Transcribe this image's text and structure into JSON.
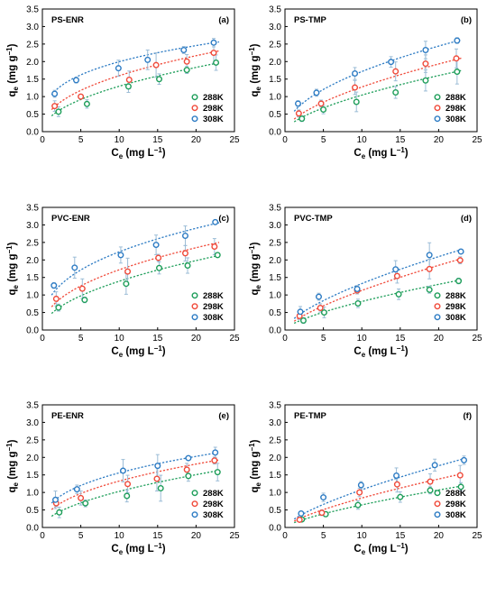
{
  "colors": {
    "288K": "#1e9e5a",
    "298K": "#f04a3a",
    "308K": "#2e7cc4",
    "error_bar": "#9bbcd6"
  },
  "axes": {
    "xlabel_main": "C",
    "xlabel_sub": "e",
    "xlabel_unit": " (mg L",
    "xlabel_exp": "−1",
    "xlabel_close": ")",
    "ylabel_main": "q",
    "ylabel_sub": "e",
    "ylabel_unit": " (mg g",
    "ylabel_exp": "−1",
    "ylabel_close": ")"
  },
  "legend_labels": [
    "288K",
    "298K",
    "308K"
  ],
  "chart_data": [
    {
      "type": "scatter",
      "title": "PS-ENR",
      "label": "(a)",
      "xlim": [
        0,
        25
      ],
      "ylim": [
        0,
        3.5
      ],
      "xticks": [
        "0",
        "5",
        "10",
        "15",
        "20",
        "25"
      ],
      "yticks": [
        "0.0",
        "0.5",
        "1.0",
        "1.5",
        "2.0",
        "2.5",
        "3.0",
        "3.5"
      ],
      "legend_position": "bottom-right",
      "series": [
        {
          "name": "288K",
          "x": [
            2.1,
            5.8,
            11.2,
            15.2,
            18.8,
            22.6
          ],
          "y": [
            0.57,
            0.79,
            1.29,
            1.5,
            1.76,
            1.97
          ],
          "err": [
            0.14,
            0.12,
            0.17,
            0.15,
            0.1,
            0.22
          ],
          "fit": {
            "k": 0.41,
            "n": 0.5
          }
        },
        {
          "name": "298K",
          "x": [
            1.6,
            5.0,
            11.3,
            14.8,
            18.8,
            22.3
          ],
          "y": [
            0.73,
            1.0,
            1.48,
            1.9,
            2.0,
            2.25
          ],
          "err": [
            0.15,
            0.06,
            0.25,
            0.35,
            0.2,
            0.3
          ],
          "fit": {
            "k": 0.58,
            "n": 0.44
          }
        },
        {
          "name": "308K",
          "x": [
            1.6,
            4.4,
            9.9,
            13.7,
            18.4,
            22.3
          ],
          "y": [
            1.08,
            1.47,
            1.81,
            2.05,
            2.33,
            2.54
          ],
          "err": [
            0.1,
            0.08,
            0.23,
            0.28,
            0.1,
            0.12
          ],
          "fit": {
            "k": 1.0,
            "n": 0.3
          }
        }
      ]
    },
    {
      "type": "scatter",
      "title": "PS-TMP",
      "label": "(b)",
      "xlim": [
        0,
        25
      ],
      "ylim": [
        0,
        3.5
      ],
      "xticks": [
        "0",
        "5",
        "10",
        "15",
        "20",
        "25"
      ],
      "yticks": [
        "0.0",
        "0.5",
        "1.0",
        "1.5",
        "2.0",
        "2.5",
        "3.0",
        "3.5"
      ],
      "legend_position": "bottom-right",
      "series": [
        {
          "name": "288K",
          "x": [
            2.2,
            5.0,
            9.3,
            14.4,
            18.3,
            22.4
          ],
          "y": [
            0.37,
            0.63,
            0.85,
            1.12,
            1.46,
            1.71
          ],
          "err": [
            0.08,
            0.12,
            0.28,
            0.17,
            0.3,
            0.35
          ],
          "fit": {
            "k": 0.25,
            "n": 0.62
          }
        },
        {
          "name": "298K",
          "x": [
            1.8,
            4.7,
            9.1,
            14.4,
            18.3,
            22.3
          ],
          "y": [
            0.52,
            0.8,
            1.26,
            1.72,
            1.94,
            2.09
          ],
          "err": [
            0.1,
            0.1,
            0.2,
            0.27,
            0.25,
            0.27
          ],
          "fit": {
            "k": 0.32,
            "n": 0.6
          }
        },
        {
          "name": "308K",
          "x": [
            1.7,
            4.1,
            9.1,
            13.8,
            18.3,
            22.4
          ],
          "y": [
            0.8,
            1.11,
            1.66,
            1.99,
            2.33,
            2.6
          ],
          "err": [
            0.08,
            0.1,
            0.17,
            0.15,
            0.25,
            0.08
          ],
          "fit": {
            "k": 0.53,
            "n": 0.51
          }
        }
      ]
    },
    {
      "type": "scatter",
      "title": "PVC-ENR",
      "label": "(c)",
      "xlim": [
        0,
        25
      ],
      "ylim": [
        0,
        3.5
      ],
      "xticks": [
        "0",
        "5",
        "10",
        "15",
        "20",
        "25"
      ],
      "yticks": [
        "0.0",
        "0.5",
        "1.0",
        "1.5",
        "2.0",
        "2.5",
        "3.0",
        "3.5"
      ],
      "legend_position": "bottom-right",
      "series": [
        {
          "name": "288K",
          "x": [
            2.1,
            5.5,
            10.9,
            15.2,
            18.9,
            22.8
          ],
          "y": [
            0.64,
            0.86,
            1.32,
            1.77,
            1.84,
            2.14
          ],
          "err": [
            0.1,
            0.08,
            0.3,
            0.17,
            0.22,
            0.04
          ],
          "fit": {
            "k": 0.43,
            "n": 0.51
          }
        },
        {
          "name": "298K",
          "x": [
            1.8,
            5.2,
            11.1,
            15.1,
            18.6,
            22.4
          ],
          "y": [
            0.89,
            1.18,
            1.67,
            2.06,
            2.19,
            2.38
          ],
          "err": [
            0.2,
            0.28,
            0.38,
            0.1,
            0.22,
            0.23
          ],
          "fit": {
            "k": 0.61,
            "n": 0.45
          }
        },
        {
          "name": "308K",
          "x": [
            1.5,
            4.2,
            10.2,
            14.8,
            18.6,
            22.5
          ],
          "y": [
            1.27,
            1.78,
            2.14,
            2.43,
            2.69,
            3.08
          ],
          "err": [
            0.08,
            0.3,
            0.23,
            0.28,
            0.28,
            0.05
          ],
          "fit": {
            "k": 0.93,
            "n": 0.38
          }
        }
      ]
    },
    {
      "type": "scatter",
      "title": "PVC-TMP",
      "label": "(d)",
      "xlim": [
        0,
        25
      ],
      "ylim": [
        0,
        3.5
      ],
      "xticks": [
        "0",
        "5",
        "10",
        "15",
        "20",
        "25"
      ],
      "yticks": [
        "0.0",
        "0.5",
        "1.0",
        "1.5",
        "2.0",
        "2.5",
        "3.0",
        "3.5"
      ],
      "legend_position": "bottom-right",
      "series": [
        {
          "name": "288K",
          "x": [
            2.4,
            5.1,
            9.5,
            14.8,
            18.8,
            22.6
          ],
          "y": [
            0.27,
            0.5,
            0.76,
            1.02,
            1.15,
            1.4
          ],
          "err": [
            0.08,
            0.15,
            0.12,
            0.15,
            0.1,
            0.08
          ],
          "fit": {
            "k": 0.17,
            "n": 0.68
          }
        },
        {
          "name": "298K",
          "x": [
            1.9,
            4.6,
            9.4,
            14.6,
            18.8,
            22.8
          ],
          "y": [
            0.4,
            0.63,
            1.13,
            1.54,
            1.74,
            1.99
          ],
          "err": [
            0.1,
            0.12,
            0.1,
            0.2,
            0.28,
            0.1
          ],
          "fit": {
            "k": 0.22,
            "n": 0.71
          }
        },
        {
          "name": "308K",
          "x": [
            2.0,
            4.4,
            9.4,
            14.4,
            18.8,
            22.9
          ],
          "y": [
            0.52,
            0.95,
            1.17,
            1.73,
            2.14,
            2.24
          ],
          "err": [
            0.15,
            0.1,
            0.1,
            0.25,
            0.35,
            0.03
          ],
          "fit": {
            "k": 0.29,
            "n": 0.66
          }
        }
      ]
    },
    {
      "type": "scatter",
      "title": "PE-ENR",
      "label": "(e)",
      "xlim": [
        0,
        25
      ],
      "ylim": [
        0,
        3.5
      ],
      "xticks": [
        "0",
        "5",
        "10",
        "15",
        "20",
        "25"
      ],
      "yticks": [
        "0.0",
        "0.5",
        "1.0",
        "1.5",
        "2.0",
        "2.5",
        "3.0",
        "3.5"
      ],
      "legend_position": "bottom-right",
      "series": [
        {
          "name": "288K",
          "x": [
            2.2,
            5.6,
            11.0,
            15.4,
            19.0,
            22.8
          ],
          "y": [
            0.43,
            0.69,
            0.9,
            1.12,
            1.47,
            1.58
          ],
          "err": [
            0.15,
            0.1,
            0.17,
            0.37,
            0.15,
            0.25
          ],
          "fit": {
            "k": 0.29,
            "n": 0.55
          }
        },
        {
          "name": "298K",
          "x": [
            1.8,
            5.0,
            11.1,
            14.9,
            18.8,
            22.4
          ],
          "y": [
            0.69,
            0.84,
            1.24,
            1.39,
            1.65,
            1.91
          ],
          "err": [
            0.1,
            0.2,
            0.25,
            0.35,
            0.18,
            0.1
          ],
          "fit": {
            "k": 0.47,
            "n": 0.45
          }
        },
        {
          "name": "308K",
          "x": [
            1.7,
            4.5,
            10.5,
            15.0,
            19.0,
            22.5
          ],
          "y": [
            0.79,
            1.09,
            1.62,
            1.76,
            1.98,
            2.14
          ],
          "err": [
            0.25,
            0.12,
            0.32,
            0.32,
            0.05,
            0.15
          ],
          "fit": {
            "k": 0.65,
            "n": 0.38
          }
        }
      ]
    },
    {
      "type": "scatter",
      "title": "PE-TMP",
      "label": "(f)",
      "xlim": [
        0,
        25
      ],
      "ylim": [
        0,
        3.5
      ],
      "xticks": [
        "0",
        "5",
        "10",
        "15",
        "20",
        "25"
      ],
      "yticks": [
        "0.0",
        "0.5",
        "1.0",
        "1.5",
        "2.0",
        "2.5",
        "3.0",
        "3.5"
      ],
      "legend_position": "bottom-right",
      "series": [
        {
          "name": "288K",
          "x": [
            2.2,
            5.3,
            9.5,
            15.0,
            18.9,
            22.9
          ],
          "y": [
            0.23,
            0.38,
            0.64,
            0.87,
            1.06,
            1.16
          ],
          "err": [
            0.05,
            0.07,
            0.12,
            0.15,
            0.1,
            0.12
          ],
          "fit": {
            "k": 0.12,
            "n": 0.73
          }
        },
        {
          "name": "298K",
          "x": [
            1.9,
            4.8,
            9.7,
            14.6,
            18.9,
            22.8
          ],
          "y": [
            0.22,
            0.42,
            1.0,
            1.23,
            1.31,
            1.49
          ],
          "err": [
            0.05,
            0.08,
            0.12,
            0.22,
            0.22,
            0.28
          ],
          "fit": {
            "k": 0.16,
            "n": 0.72
          }
        },
        {
          "name": "308K",
          "x": [
            2.1,
            5.0,
            9.9,
            14.5,
            19.5,
            23.3
          ],
          "y": [
            0.4,
            0.86,
            1.21,
            1.48,
            1.78,
            1.92
          ],
          "err": [
            0.05,
            0.12,
            0.1,
            0.22,
            0.17,
            0.12
          ],
          "fit": {
            "k": 0.21,
            "n": 0.71
          }
        }
      ]
    }
  ]
}
